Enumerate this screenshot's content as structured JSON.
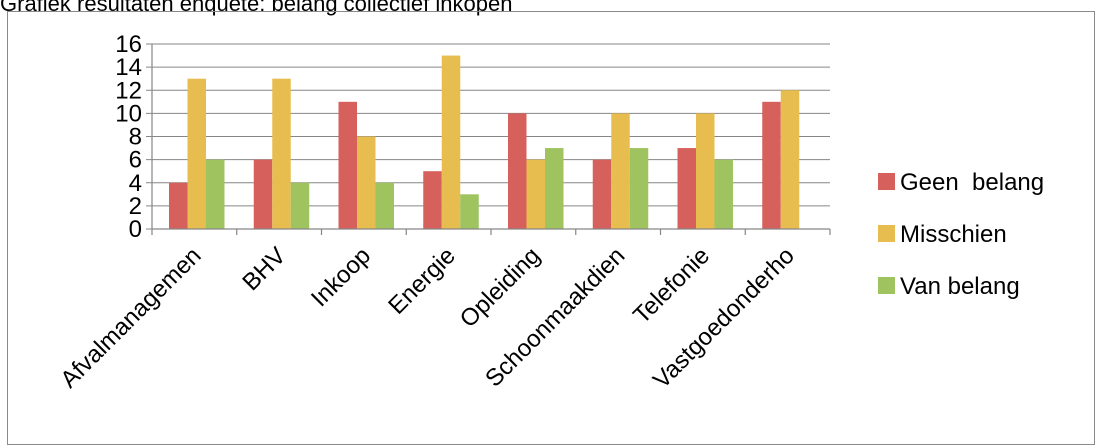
{
  "title": "Grafiek resultaten enquete: belang collectief inkopen",
  "colors": {
    "Geen  belang": "#d6605b",
    "Misschien": "#e8bd4f",
    "Van belang": "#9ec35f",
    "axis": "#868686",
    "grid": "#868686"
  },
  "chart_data": {
    "type": "bar",
    "title": "Grafiek resultaten enquete: belang collectief inkopen",
    "categories": [
      "Afvalmanagemen",
      "BHV",
      "Inkoop",
      "Energie",
      "Opleiding",
      "Schoonmaakdien",
      "Telefonie",
      "Vastgoedonderho"
    ],
    "series": [
      {
        "name": "Geen  belang",
        "values": [
          4,
          6,
          11,
          5,
          10,
          6,
          7,
          11
        ]
      },
      {
        "name": "Misschien",
        "values": [
          13,
          13,
          8,
          15,
          6,
          10,
          10,
          12
        ]
      },
      {
        "name": "Van belang",
        "values": [
          6,
          4,
          4,
          3,
          7,
          7,
          6,
          0
        ]
      }
    ],
    "ylim": [
      0,
      16
    ],
    "yticks": [
      0,
      2,
      4,
      6,
      8,
      10,
      12,
      14,
      16
    ],
    "grid": true,
    "legend": "right",
    "xlabel": "",
    "ylabel": ""
  }
}
